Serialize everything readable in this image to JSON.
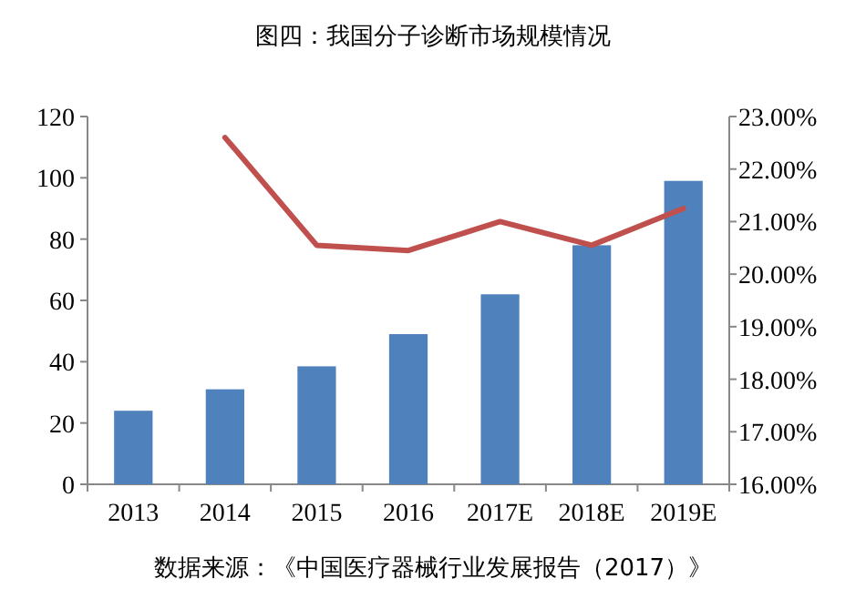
{
  "chart_data": {
    "type": "bar",
    "title": "图四：我国分子诊断市场规模情况",
    "categories": [
      "2013",
      "2014",
      "2015",
      "2016",
      "2017E",
      "2018E",
      "2019E"
    ],
    "series": [
      {
        "color": "#4f81bd",
        "values": [
          24,
          31,
          38.5,
          49,
          62,
          78,
          99
        ]
      },
      {
        "type": "line",
        "axis": "y2",
        "color": "#c0504d",
        "values": [
          null,
          22.6,
          20.55,
          20.45,
          21.0,
          20.55,
          21.25
        ]
      }
    ],
    "ylim": [
      0,
      120
    ],
    "yticks": [
      0,
      20,
      40,
      60,
      80,
      100,
      120
    ],
    "y2lim": [
      16,
      23
    ],
    "y2ticks": [
      {
        "value": 16,
        "label": "16.00%"
      },
      {
        "value": 17,
        "label": "17.00%"
      },
      {
        "value": 18,
        "label": "18.00%"
      },
      {
        "value": 19,
        "label": "19.00%"
      },
      {
        "value": 20,
        "label": "20.00%"
      },
      {
        "value": 21,
        "label": "21.00%"
      },
      {
        "value": 22,
        "label": "22.00%"
      },
      {
        "value": 23,
        "label": "23.00%"
      }
    ],
    "grid": false,
    "annotations": [
      "数据来源：《中国医疗器械行业发展报告（2017）》"
    ]
  }
}
